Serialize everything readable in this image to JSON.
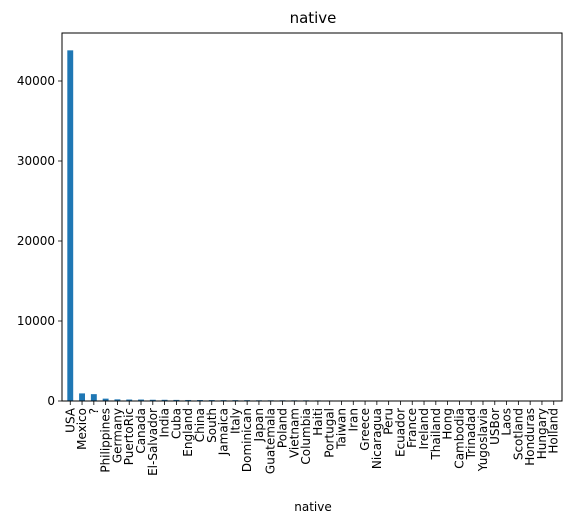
{
  "chart_data": {
    "type": "bar",
    "title": "native",
    "xlabel": "native",
    "ylabel": "",
    "ylim": [
      0,
      46000
    ],
    "yticks": [
      0,
      10000,
      20000,
      30000,
      40000
    ],
    "grid": false,
    "bar_color": "#1f77b4",
    "categories": [
      "USA",
      "Mexico",
      "?",
      "Philippines",
      "Germany",
      "PuertoRic",
      "Canada",
      "El-Salvador",
      "India",
      "Cuba",
      "England",
      "China",
      "South",
      "Jamaica",
      "Italy",
      "Dominican",
      "Japan",
      "Guatemala",
      "Poland",
      "Vietnam",
      "Columbia",
      "Haiti",
      "Portugal",
      "Taiwan",
      "Iran",
      "Greece",
      "Nicaragua",
      "Peru",
      "Ecuador",
      "France",
      "Ireland",
      "Thailand",
      "Hong",
      "Cambodia",
      "Trinadad",
      "Yugoslavia",
      "USBor",
      "Laos",
      "Scotland",
      "Honduras",
      "Hungary",
      "Holland"
    ],
    "values": [
      43832,
      951,
      857,
      295,
      206,
      184,
      182,
      155,
      151,
      138,
      127,
      122,
      115,
      106,
      105,
      103,
      92,
      88,
      87,
      86,
      85,
      75,
      67,
      65,
      59,
      49,
      49,
      46,
      45,
      38,
      37,
      30,
      30,
      28,
      27,
      23,
      23,
      23,
      21,
      20,
      19,
      1
    ]
  }
}
